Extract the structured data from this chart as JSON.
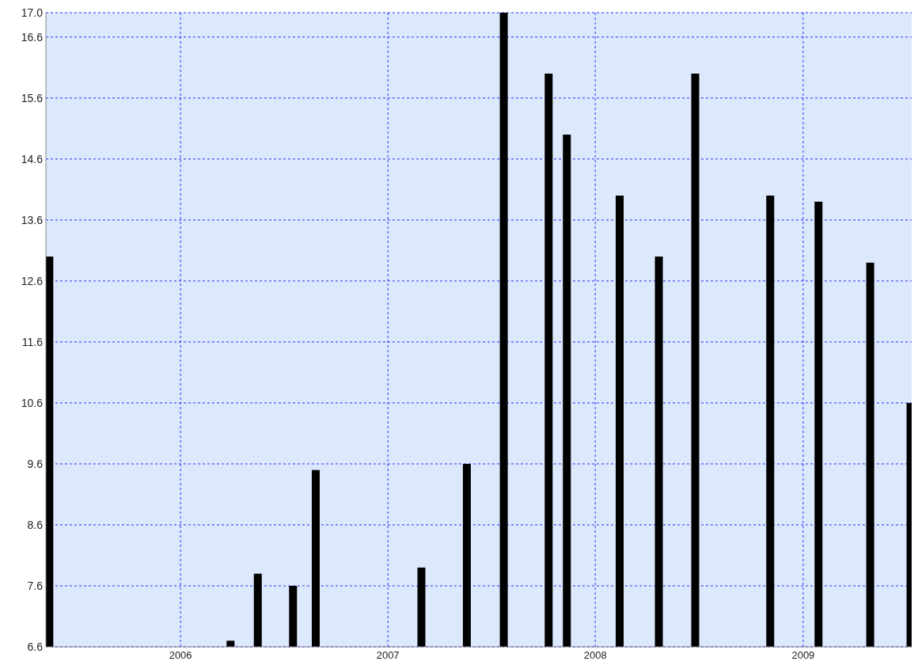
{
  "chart_data": {
    "type": "bar",
    "x": [
      "2005-05-15",
      "2006-03-30",
      "2006-05-17",
      "2006-07-18",
      "2006-08-27",
      "2007-03-01",
      "2007-05-20",
      "2007-07-24",
      "2007-10-11",
      "2007-11-12",
      "2008-02-13",
      "2008-04-22",
      "2008-06-25",
      "2008-11-04",
      "2009-01-28",
      "2009-04-29",
      "2009-07-09"
    ],
    "values": [
      13.0,
      6.7,
      7.8,
      7.6,
      9.5,
      7.9,
      9.6,
      17.0,
      16.0,
      15.0,
      14.0,
      13.0,
      16.0,
      14.0,
      13.9,
      12.9,
      10.6
    ],
    "color": "#000000",
    "xlim": [
      "2005-05-09",
      "2009-07-11"
    ],
    "xticks": [
      {
        "value": "2006-01-01",
        "label": "2006"
      },
      {
        "value": "2007-01-01",
        "label": "2007"
      },
      {
        "value": "2008-01-01",
        "label": "2008"
      },
      {
        "value": "2009-01-01",
        "label": "2009"
      }
    ],
    "ylim": [
      6.6,
      17.0
    ],
    "yticks": [
      6.6,
      7.6,
      8.6,
      9.6,
      10.6,
      11.6,
      12.6,
      13.6,
      14.6,
      15.6,
      16.6,
      {
        "value": 17.0,
        "label": "17.0"
      }
    ],
    "grid": true
  }
}
